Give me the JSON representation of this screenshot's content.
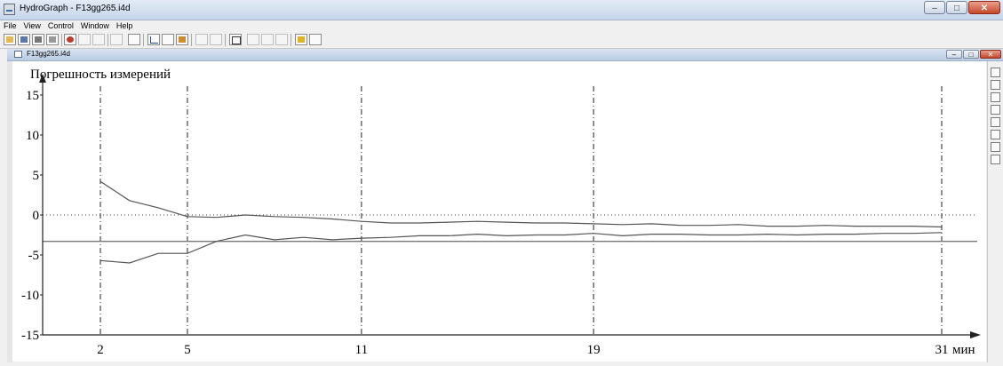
{
  "window": {
    "title": "HydroGraph - F13gg265.i4d",
    "controls": {
      "minimize": "–",
      "maximize": "□",
      "close": "✕"
    }
  },
  "menu": [
    "File",
    "View",
    "Control",
    "Window",
    "Help"
  ],
  "document": {
    "title": "F13gg265.i4d"
  },
  "chart_data": {
    "type": "line",
    "ylabel": "Погрешность измерений",
    "xunit": "мин",
    "ylim": [
      -15,
      15
    ],
    "xlim": [
      0,
      31
    ],
    "yticks": [
      "15",
      "10",
      "5",
      "0",
      "-5",
      "-10",
      "-15"
    ],
    "xticks": [
      "2",
      "5",
      "11",
      "19",
      "31"
    ],
    "vgrid_at": [
      2,
      5,
      11,
      19,
      31
    ],
    "zero_line": "dotted",
    "reference_line": -3.3,
    "series": [
      {
        "x": [
          2,
          3,
          4,
          5,
          6,
          7,
          8,
          9,
          10,
          11,
          12,
          13,
          14,
          15,
          16,
          17,
          18,
          19,
          20,
          21,
          22,
          23,
          24,
          25,
          26,
          27,
          28,
          29,
          30,
          31
        ],
        "values": [
          4.2,
          1.8,
          0.9,
          -0.2,
          -0.3,
          0.0,
          -0.2,
          -0.3,
          -0.5,
          -0.8,
          -1.0,
          -1.0,
          -0.9,
          -0.8,
          -0.9,
          -1.0,
          -1.0,
          -1.1,
          -1.2,
          -1.1,
          -1.3,
          -1.3,
          -1.2,
          -1.4,
          -1.4,
          -1.3,
          -1.4,
          -1.4,
          -1.4,
          -1.5
        ]
      },
      {
        "x": [
          2,
          3,
          4,
          5,
          6,
          7,
          8,
          9,
          10,
          11,
          12,
          13,
          14,
          15,
          16,
          17,
          18,
          19,
          20,
          21,
          22,
          23,
          24,
          25,
          26,
          27,
          28,
          29,
          30,
          31
        ],
        "values": [
          -5.7,
          -6.0,
          -4.8,
          -4.8,
          -3.3,
          -2.5,
          -3.1,
          -2.8,
          -3.1,
          -2.9,
          -2.8,
          -2.6,
          -2.6,
          -2.4,
          -2.6,
          -2.5,
          -2.5,
          -2.3,
          -2.6,
          -2.4,
          -2.4,
          -2.5,
          -2.5,
          -2.4,
          -2.5,
          -2.4,
          -2.4,
          -2.3,
          -2.3,
          -2.2
        ]
      }
    ]
  },
  "sidebar_icons": [
    "grid-icon",
    "ruler-icon",
    "gear-icon",
    "chart-icon",
    "chart-icon",
    "chart-icon",
    "chart-icon",
    "chart-icon"
  ]
}
